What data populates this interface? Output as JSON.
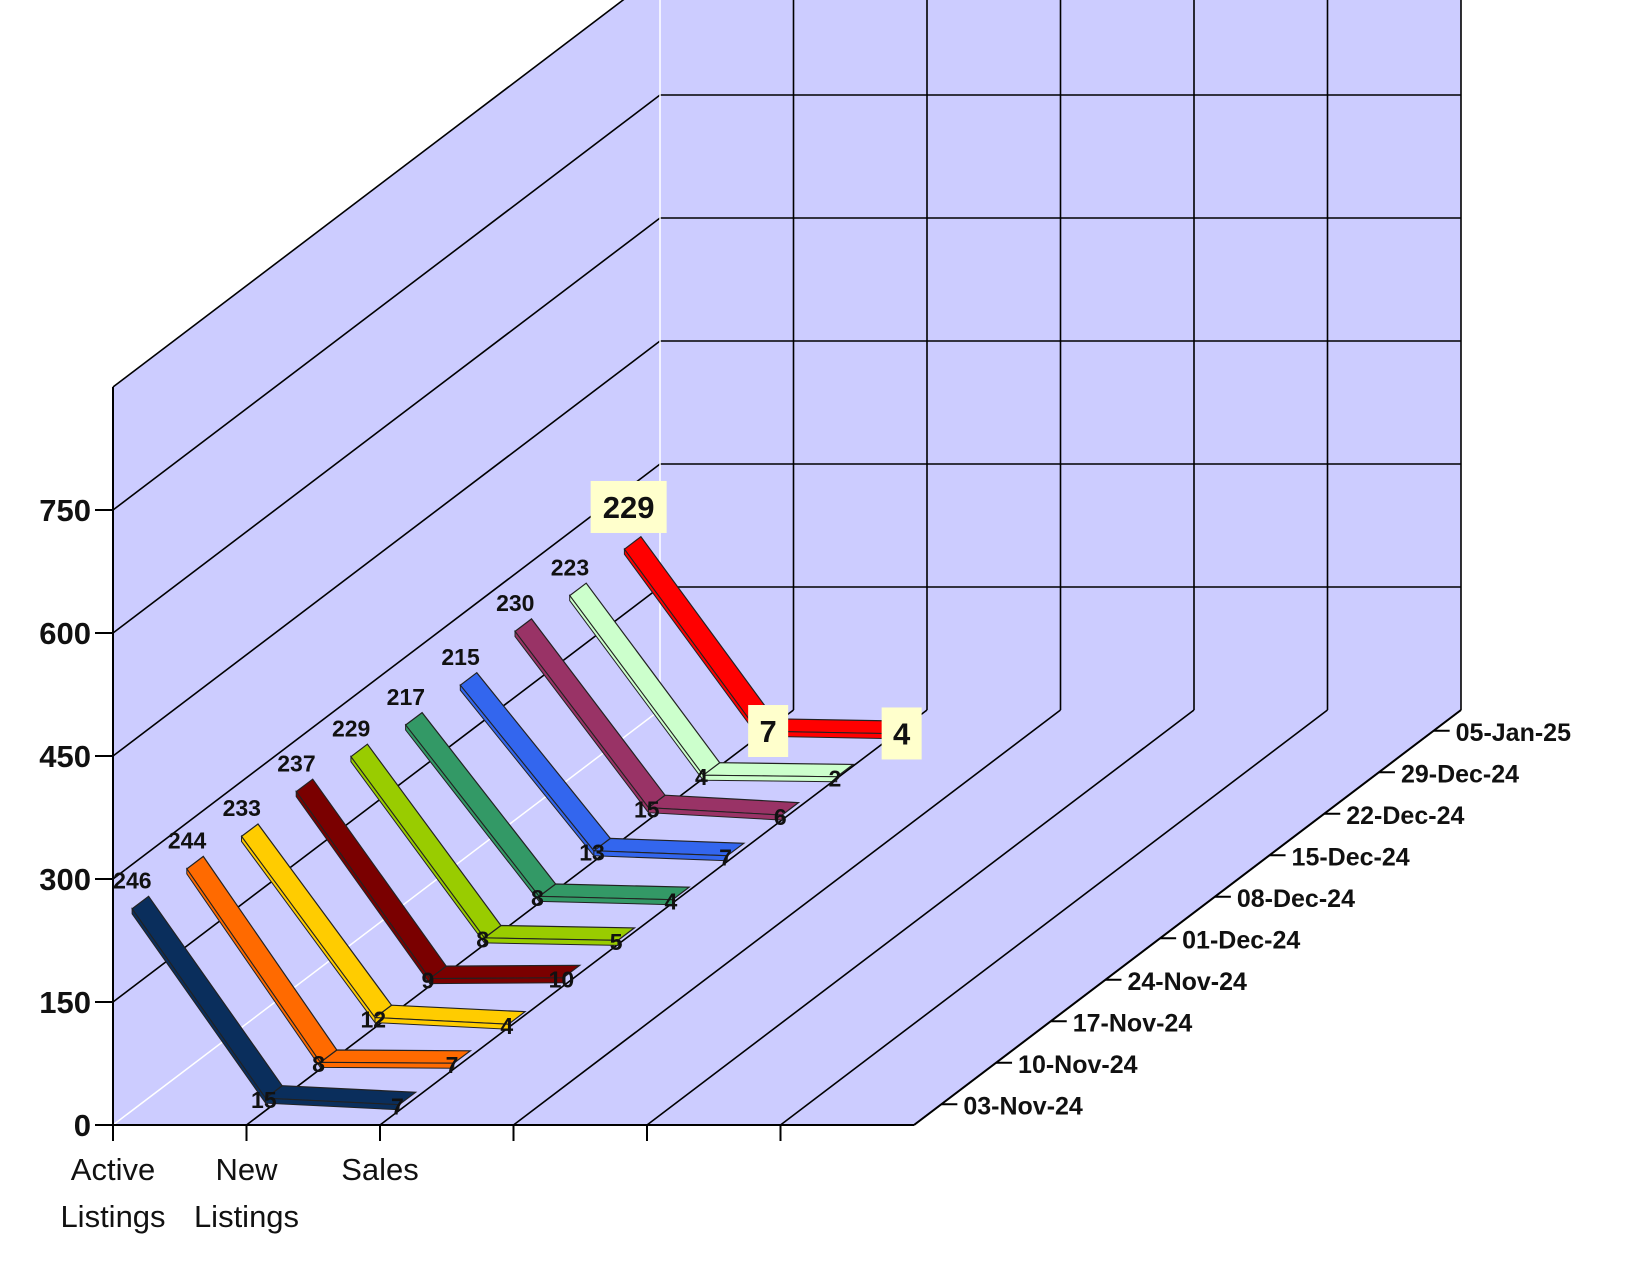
{
  "chart_data": {
    "type": "line",
    "variant": "3d-ribbon",
    "title": "",
    "categories": [
      "Active Listings",
      "New Listings",
      "Sales"
    ],
    "y_ticks": [
      "0",
      "150",
      "300",
      "450",
      "600",
      "750"
    ],
    "ylim": [
      0,
      900
    ],
    "series": [
      {
        "name": "03-Nov-24",
        "values": [
          246,
          15,
          7
        ],
        "color": "#0a2e5c"
      },
      {
        "name": "10-Nov-24",
        "values": [
          244,
          8,
          7
        ],
        "color": "#ff6a00"
      },
      {
        "name": "17-Nov-24",
        "values": [
          233,
          12,
          4
        ],
        "color": "#ffcc00"
      },
      {
        "name": "24-Nov-24",
        "values": [
          237,
          9,
          10
        ],
        "color": "#7a0000"
      },
      {
        "name": "01-Dec-24",
        "values": [
          229,
          8,
          5
        ],
        "color": "#99cc00"
      },
      {
        "name": "08-Dec-24",
        "values": [
          217,
          8,
          4
        ],
        "color": "#339966"
      },
      {
        "name": "15-Dec-24",
        "values": [
          215,
          13,
          7
        ],
        "color": "#3366ee"
      },
      {
        "name": "22-Dec-24",
        "values": [
          230,
          15,
          6
        ],
        "color": "#993366"
      },
      {
        "name": "29-Dec-24",
        "values": [
          223,
          4,
          2
        ],
        "color": "#ccffcc"
      },
      {
        "name": "05-Jan-25",
        "values": [
          229,
          7,
          4
        ],
        "color": "#ff0000"
      }
    ],
    "grid": true,
    "wall_color": "#ccccff",
    "highlight_color": "#ffffcc",
    "highlight_series": "05-Jan-25"
  }
}
